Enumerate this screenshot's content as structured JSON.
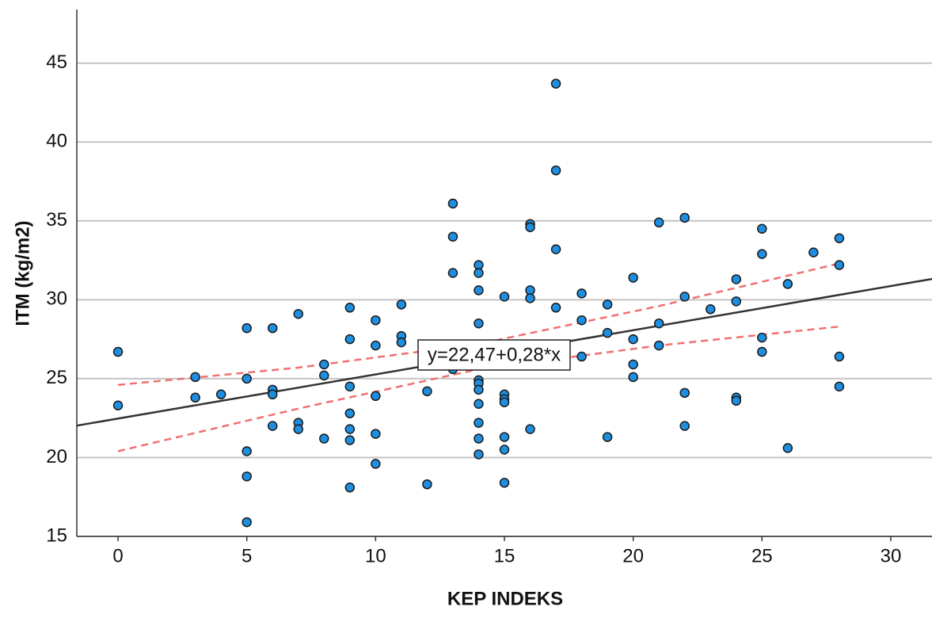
{
  "chart_data": {
    "type": "scatter",
    "x_label": "KEP INDEKS",
    "y_label": "ITM (kg/m2)",
    "x": [
      0,
      0,
      3,
      3,
      4,
      5,
      5,
      5,
      5,
      5,
      6,
      6,
      6,
      6,
      7,
      7,
      7,
      8,
      8,
      8,
      9,
      9,
      9,
      9,
      9,
      9,
      9,
      10,
      10,
      10,
      10,
      10,
      11,
      11,
      11,
      12,
      12,
      13,
      13,
      13,
      13,
      14,
      14,
      14,
      14,
      14,
      14,
      14,
      14,
      14,
      14,
      14,
      15,
      15,
      15,
      15,
      15,
      15,
      15,
      16,
      16,
      16,
      16,
      16,
      17,
      17,
      17,
      17,
      18,
      18,
      18,
      19,
      19,
      19,
      20,
      20,
      20,
      20,
      21,
      21,
      21,
      22,
      22,
      22,
      22,
      23,
      24,
      24,
      24,
      24,
      25,
      25,
      25,
      25,
      26,
      26,
      27,
      28,
      28,
      28,
      28
    ],
    "values": [
      26.7,
      23.3,
      25.1,
      23.8,
      24.0,
      28.2,
      25.0,
      20.4,
      18.8,
      15.9,
      28.2,
      24.3,
      24.0,
      22.0,
      29.1,
      22.2,
      21.8,
      25.9,
      25.2,
      21.2,
      29.5,
      27.5,
      24.5,
      22.8,
      21.8,
      21.1,
      18.1,
      28.7,
      27.1,
      23.9,
      21.5,
      19.6,
      29.7,
      27.7,
      27.3,
      24.2,
      18.3,
      36.1,
      34.0,
      31.7,
      25.6,
      32.2,
      31.7,
      30.6,
      28.5,
      24.9,
      24.7,
      24.3,
      23.4,
      22.2,
      21.2,
      20.2,
      30.2,
      24.0,
      23.7,
      23.5,
      21.3,
      20.5,
      18.4,
      34.8,
      34.6,
      30.6,
      30.1,
      21.8,
      43.7,
      38.2,
      33.2,
      29.5,
      30.4,
      28.7,
      26.4,
      29.7,
      27.9,
      21.3,
      31.4,
      27.5,
      25.9,
      25.1,
      34.9,
      28.5,
      27.1,
      35.2,
      30.2,
      24.1,
      22.0,
      29.4,
      31.3,
      29.9,
      23.8,
      23.6,
      34.5,
      32.9,
      27.6,
      26.7,
      31.0,
      20.6,
      33.0,
      33.9,
      32.2,
      26.4,
      24.5
    ],
    "color": "#1e8fe0",
    "regression": {
      "intercept": 22.47,
      "slope": 0.28,
      "color": "#333333",
      "annotation": "y=22,47+0,28*x"
    },
    "ci": {
      "x": [
        0,
        7,
        14,
        21,
        28
      ],
      "upper": [
        24.6,
        25.7,
        27.2,
        29.6,
        32.3
      ],
      "lower": [
        20.4,
        23.1,
        25.6,
        27.1,
        28.3
      ],
      "color": "#f07070"
    },
    "xlim": [
      -1.6,
      31.6
    ],
    "ylim": [
      15,
      48.4
    ],
    "xticks": [
      0,
      5,
      10,
      15,
      20,
      25,
      30
    ],
    "yticks": [
      15,
      20,
      25,
      30,
      35,
      40,
      45
    ],
    "grid": true
  }
}
